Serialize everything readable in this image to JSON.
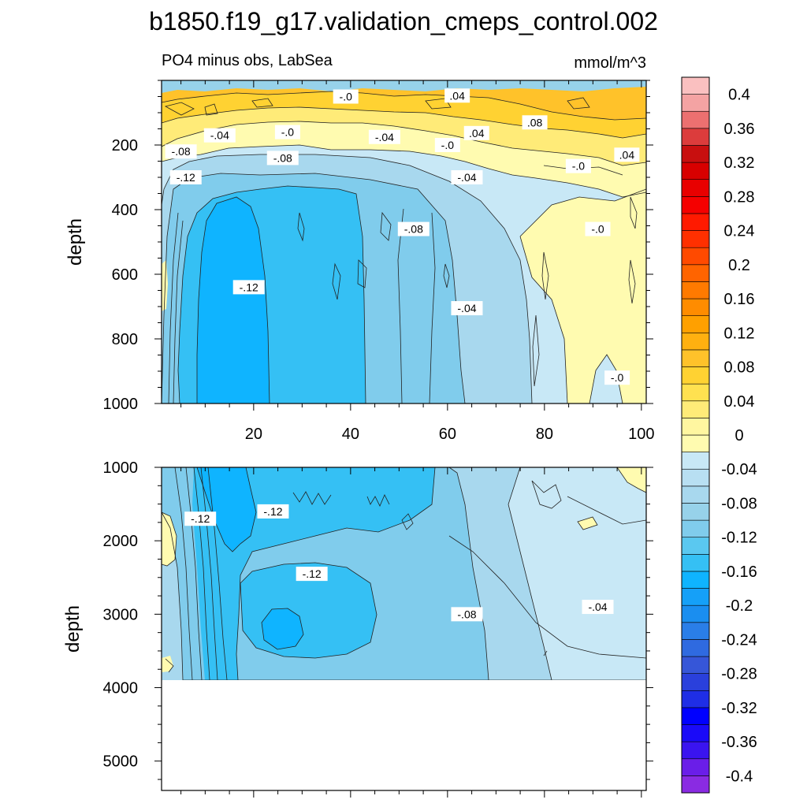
{
  "figure": {
    "title": "b1850.f19_g17.validation_cmeps_control.002",
    "subtitle_left": "PO4 minus obs, LabSea",
    "subtitle_right": "mmol/m^3"
  },
  "chart_data": [
    {
      "type": "heatmap",
      "panel": "upper",
      "ylabel": "depth",
      "xlabel": "",
      "xlim": [
        1,
        101
      ],
      "ylim": [
        0,
        1000
      ],
      "y_inverted": true,
      "x_ticks": [
        "20",
        "40",
        "60",
        "80",
        "100"
      ],
      "y_ticks": [
        "200",
        "400",
        "600",
        "800",
        "1000"
      ],
      "contour_labels": [
        {
          "text": "-.0",
          "x": 39,
          "y": 50
        },
        {
          "text": ".04",
          "x": 62,
          "y": 47
        },
        {
          "text": ".08",
          "x": 78,
          "y": 130
        },
        {
          "text": "-.04",
          "x": 13,
          "y": 170
        },
        {
          "text": "-.0",
          "x": 27,
          "y": 160
        },
        {
          "text": "-.04",
          "x": 47,
          "y": 175
        },
        {
          "text": ".04",
          "x": 66,
          "y": 163
        },
        {
          "text": "-.0",
          "x": 60,
          "y": 200
        },
        {
          "text": "-.08",
          "x": 5,
          "y": 220
        },
        {
          "text": "-.08",
          "x": 26,
          "y": 240
        },
        {
          "text": ".04",
          "x": 97,
          "y": 230
        },
        {
          "text": "-.0",
          "x": 87,
          "y": 265
        },
        {
          "text": "-.12",
          "x": 6,
          "y": 300
        },
        {
          "text": "-.04",
          "x": 64,
          "y": 300
        },
        {
          "text": "-.0",
          "x": 91,
          "y": 460
        },
        {
          "text": "-.08",
          "x": 53,
          "y": 460
        },
        {
          "text": "-.12",
          "x": 19,
          "y": 640
        },
        {
          "text": "-.04",
          "x": 64,
          "y": 705
        },
        {
          "text": "-.0",
          "x": 95,
          "y": 920
        }
      ]
    },
    {
      "type": "heatmap",
      "panel": "lower",
      "ylabel": "depth",
      "xlabel": "",
      "xlim": [
        1,
        101
      ],
      "ylim": [
        1000,
        5400
      ],
      "y_inverted": true,
      "x_ticks": [
        "20",
        "40",
        "60",
        "80",
        "100"
      ],
      "y_ticks": [
        "1000",
        "2000",
        "3000",
        "4000",
        "5000"
      ],
      "data_bottom_depth": 3850,
      "contour_labels": [
        {
          "text": "-.12",
          "x": 9,
          "y": 1700
        },
        {
          "text": "-.12",
          "x": 24,
          "y": 1600
        },
        {
          "text": "-.12",
          "x": 32,
          "y": 2450
        },
        {
          "text": "-.08",
          "x": 64,
          "y": 3000
        },
        {
          "text": "-.04",
          "x": 91,
          "y": 2900
        }
      ]
    }
  ],
  "colorbar": {
    "orientation": "vertical",
    "min": -0.42,
    "max": 0.42,
    "step": 0.02,
    "labels": [
      "0.4",
      "0.36",
      "0.32",
      "0.28",
      "0.24",
      "0.2",
      "0.16",
      "0.12",
      "0.08",
      "0.04",
      "0",
      "-0.04",
      "-0.08",
      "-0.12",
      "-0.16",
      "-0.2",
      "-0.24",
      "-0.28",
      "-0.32",
      "-0.36",
      "-0.4"
    ],
    "label_values": [
      0.4,
      0.36,
      0.32,
      0.28,
      0.24,
      0.2,
      0.16,
      0.12,
      0.08,
      0.04,
      0,
      -0.04,
      -0.08,
      -0.12,
      -0.16,
      -0.2,
      -0.24,
      -0.28,
      -0.32,
      -0.36,
      -0.4
    ],
    "colors": [
      "#8a2be2",
      "#6a1ee8",
      "#3a14f0",
      "#1a0af8",
      "#0000ff",
      "#1f2ee6",
      "#2a40dc",
      "#3656d8",
      "#2f6ae0",
      "#2a7ee8",
      "#1a8ef0",
      "#15a0f8",
      "#0fb4ff",
      "#35c0f4",
      "#5ac8f0",
      "#80ccec",
      "#97d2ea",
      "#a8d8ee",
      "#b8dff2",
      "#c8e8f6",
      "#fffbb0",
      "#fff6a0",
      "#ffeb78",
      "#ffe150",
      "#ffd232",
      "#ffc22a",
      "#ffb010",
      "#ffa000",
      "#ff8c00",
      "#ff7a00",
      "#ff6400",
      "#ff4a00",
      "#ff3000",
      "#ff1a00",
      "#f50000",
      "#e80000",
      "#d80000",
      "#c80f0f",
      "#dc3c3c",
      "#ec7070",
      "#f4a3a3",
      "#fac0c0"
    ]
  },
  "colors": {
    "neg": [
      "#c8e8f6",
      "#b8dff2",
      "#a8d8ee",
      "#97d2ea",
      "#80ccec",
      "#5ac8f0",
      "#35c0f4",
      "#0fb4ff"
    ],
    "pos": [
      "#fffbb0",
      "#fff6a0",
      "#ffeb78",
      "#ffe150",
      "#ffd232",
      "#ffc22a"
    ]
  }
}
